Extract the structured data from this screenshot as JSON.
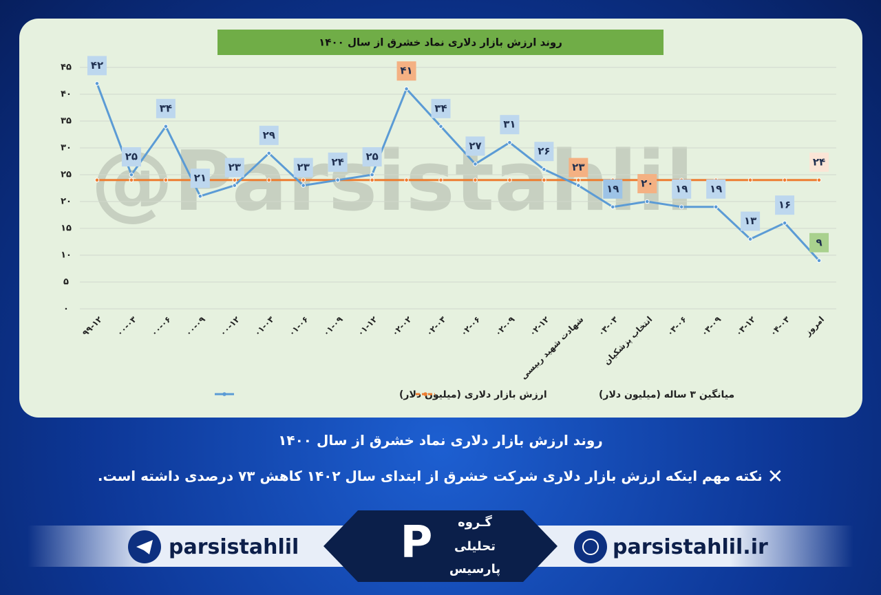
{
  "chart_data": {
    "type": "line",
    "title": "روند ارزش بازار دلاری نماد خشرق از سال ۱۴۰۰",
    "watermark": "@Parsistahlil",
    "categories": [
      "۹۹-۱۲",
      "۰۰-۰۳",
      "۰۰-۰۶",
      "۰۰-۰۹",
      "۰۰-۱۲",
      "۰۱-۰۳",
      "۰۱-۰۶",
      "۰۱-۰۹",
      "۰۱-۱۲",
      "۰۲-۰۲",
      "۰۲-۰۳",
      "۰۲-۰۶",
      "۰۲-۰۹",
      "۰۲-۱۲",
      "شهادت شهید رییسی",
      "۰۳-۰۳",
      "انتخاب پزشکیان",
      "۰۳-۰۶",
      "۰۳-۰۹",
      "۰۳-۱۲",
      "۰۴-۰۳",
      "امروز"
    ],
    "series": [
      {
        "name": "ارزش بازار دلاری (میلیون دلار)",
        "color": "#5b9bd5",
        "values": [
          42,
          25,
          34,
          21,
          23,
          29,
          23,
          24,
          25,
          41,
          34,
          27,
          31,
          26,
          23,
          19,
          20,
          19,
          19,
          13,
          16,
          9
        ],
        "value_labels": [
          "۴۲",
          "۲۵",
          "۳۴",
          "۲۱",
          "۲۳",
          "۲۹",
          "۲۳",
          "۲۴",
          "۲۵",
          "۴۱",
          "۳۴",
          "۲۷",
          "۳۱",
          "۲۶",
          "۲۳",
          "۱۹",
          "۲۰",
          "۱۹",
          "۱۹",
          "۱۳",
          "۱۶",
          "۹"
        ],
        "value_label_colors": [
          "#bdd7ee",
          "#bdd7ee",
          "#bdd7ee",
          "#bdd7ee",
          "#bdd7ee",
          "#bdd7ee",
          "#bdd7ee",
          "#bdd7ee",
          "#bdd7ee",
          "#f4b183",
          "#bdd7ee",
          "#bdd7ee",
          "#bdd7ee",
          "#bdd7ee",
          "#f4b183",
          "#9dc3e6",
          "#f4b183",
          "#bdd7ee",
          "#bdd7ee",
          "#bdd7ee",
          "#bdd7ee",
          "#a9d18e"
        ]
      },
      {
        "name": "میانگین ۳ ساله (میلیون دلار)",
        "color": "#ed7d31",
        "values": [
          24,
          24,
          24,
          24,
          24,
          24,
          24,
          24,
          24,
          24,
          24,
          24,
          24,
          24,
          24,
          24,
          24,
          24,
          24,
          24,
          24,
          24
        ],
        "value_labels": [
          null,
          null,
          null,
          null,
          null,
          null,
          null,
          null,
          null,
          null,
          null,
          null,
          null,
          null,
          null,
          null,
          null,
          null,
          null,
          null,
          null,
          "۲۴"
        ],
        "value_label_colors": [
          null,
          null,
          null,
          null,
          null,
          null,
          null,
          null,
          null,
          null,
          null,
          null,
          null,
          null,
          null,
          null,
          null,
          null,
          null,
          null,
          null,
          "#fbe5d6"
        ]
      }
    ],
    "ylim": [
      0,
      45
    ],
    "yticks": [
      {
        "value": 0,
        "label": "۰"
      },
      {
        "value": 5,
        "label": "۵"
      },
      {
        "value": 10,
        "label": "۱۰"
      },
      {
        "value": 15,
        "label": "۱۵"
      },
      {
        "value": 20,
        "label": "۲۰"
      },
      {
        "value": 25,
        "label": "۲۵"
      },
      {
        "value": 30,
        "label": "۳۰"
      },
      {
        "value": 35,
        "label": "۳۵"
      },
      {
        "value": 40,
        "label": "۴۰"
      },
      {
        "value": 45,
        "label": "۴۵"
      }
    ],
    "grid": true
  },
  "caption": {
    "heading": "روند ارزش بازار دلاری نماد خشرق از سال ۱۴۰۰",
    "note": "نکته مهم اینکه ارزش بازار دلاری شرکت  خشرق از ابتدای سال ۱۴۰۲ کاهش ۷۳ درصدی داشته است."
  },
  "footer": {
    "telegram": "parsistahlil",
    "website": "parsistahlil.ir",
    "logo_lines": [
      "گـروه",
      "تحلیلی",
      "پارسیس"
    ]
  }
}
